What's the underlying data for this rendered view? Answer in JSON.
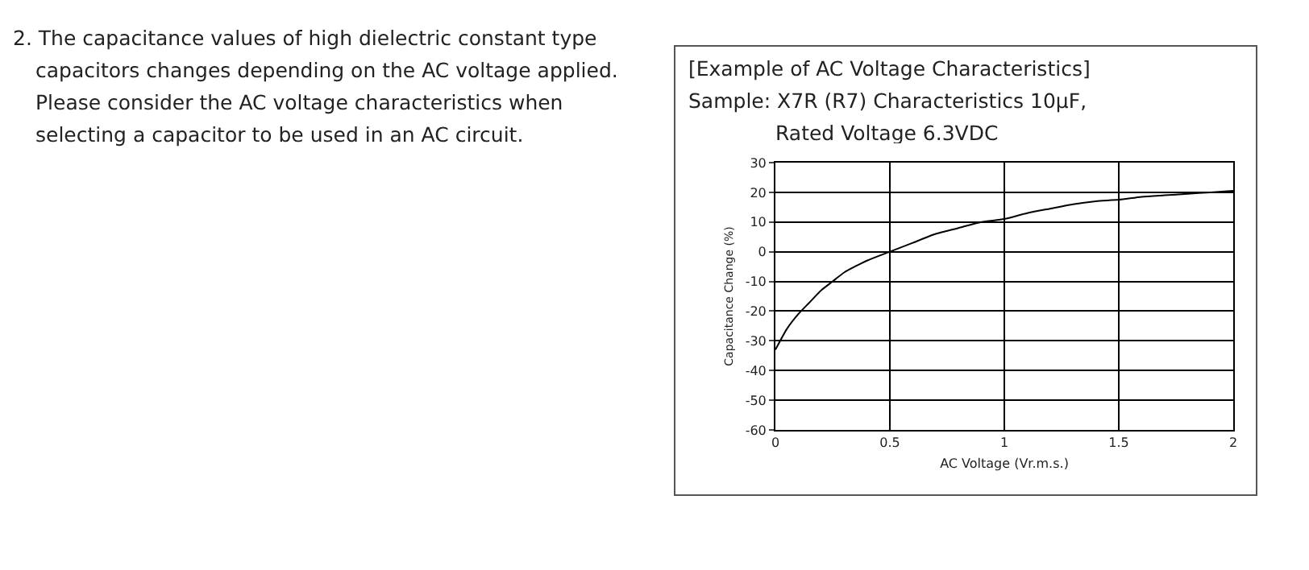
{
  "chart_data": {
    "type": "line",
    "title": "[Example of AC Voltage Characteristics]",
    "subtitle": "Sample: X7R (R7) Characteristics 10μF,\nRated Voltage 6.3VDC",
    "xlabel": "AC Voltage (Vr.m.s.)",
    "ylabel": "Capacitance Change (%)",
    "annotations": [
      "2. The capacitance values of high dielectric constant type\ncapacitors changes depending on the AC voltage applied.\nPlease consider the AC voltage characteristics when\nselecting a capacitor to be used in an AC circuit."
    ],
    "x": [
      0,
      0.05,
      0.1,
      0.15,
      0.2,
      0.25,
      0.3,
      0.4,
      0.5,
      0.6,
      0.7,
      0.8,
      0.9,
      1,
      1.1,
      1.2,
      1.3,
      1.4,
      1.5,
      1.6,
      1.7,
      1.8,
      1.9,
      2
    ],
    "series": [
      {
        "color": "#000000",
        "values": [
          -33,
          -26,
          -21,
          -17,
          -13,
          -10,
          -7,
          -3,
          0,
          3,
          6,
          8,
          10,
          11,
          13,
          14.5,
          16,
          17,
          17.5,
          18.5,
          19,
          19.5,
          20,
          20.5
        ]
      }
    ],
    "xlim": [
      0,
      2
    ],
    "xticks": [
      0,
      0.5,
      1,
      1.5,
      2
    ],
    "ylim": [
      -60,
      30
    ],
    "yticks": [
      -60,
      -50,
      -40,
      -30,
      -20,
      -10,
      0,
      10,
      20,
      30
    ],
    "grid": true,
    "marker": "none",
    "line_style": "solid"
  }
}
